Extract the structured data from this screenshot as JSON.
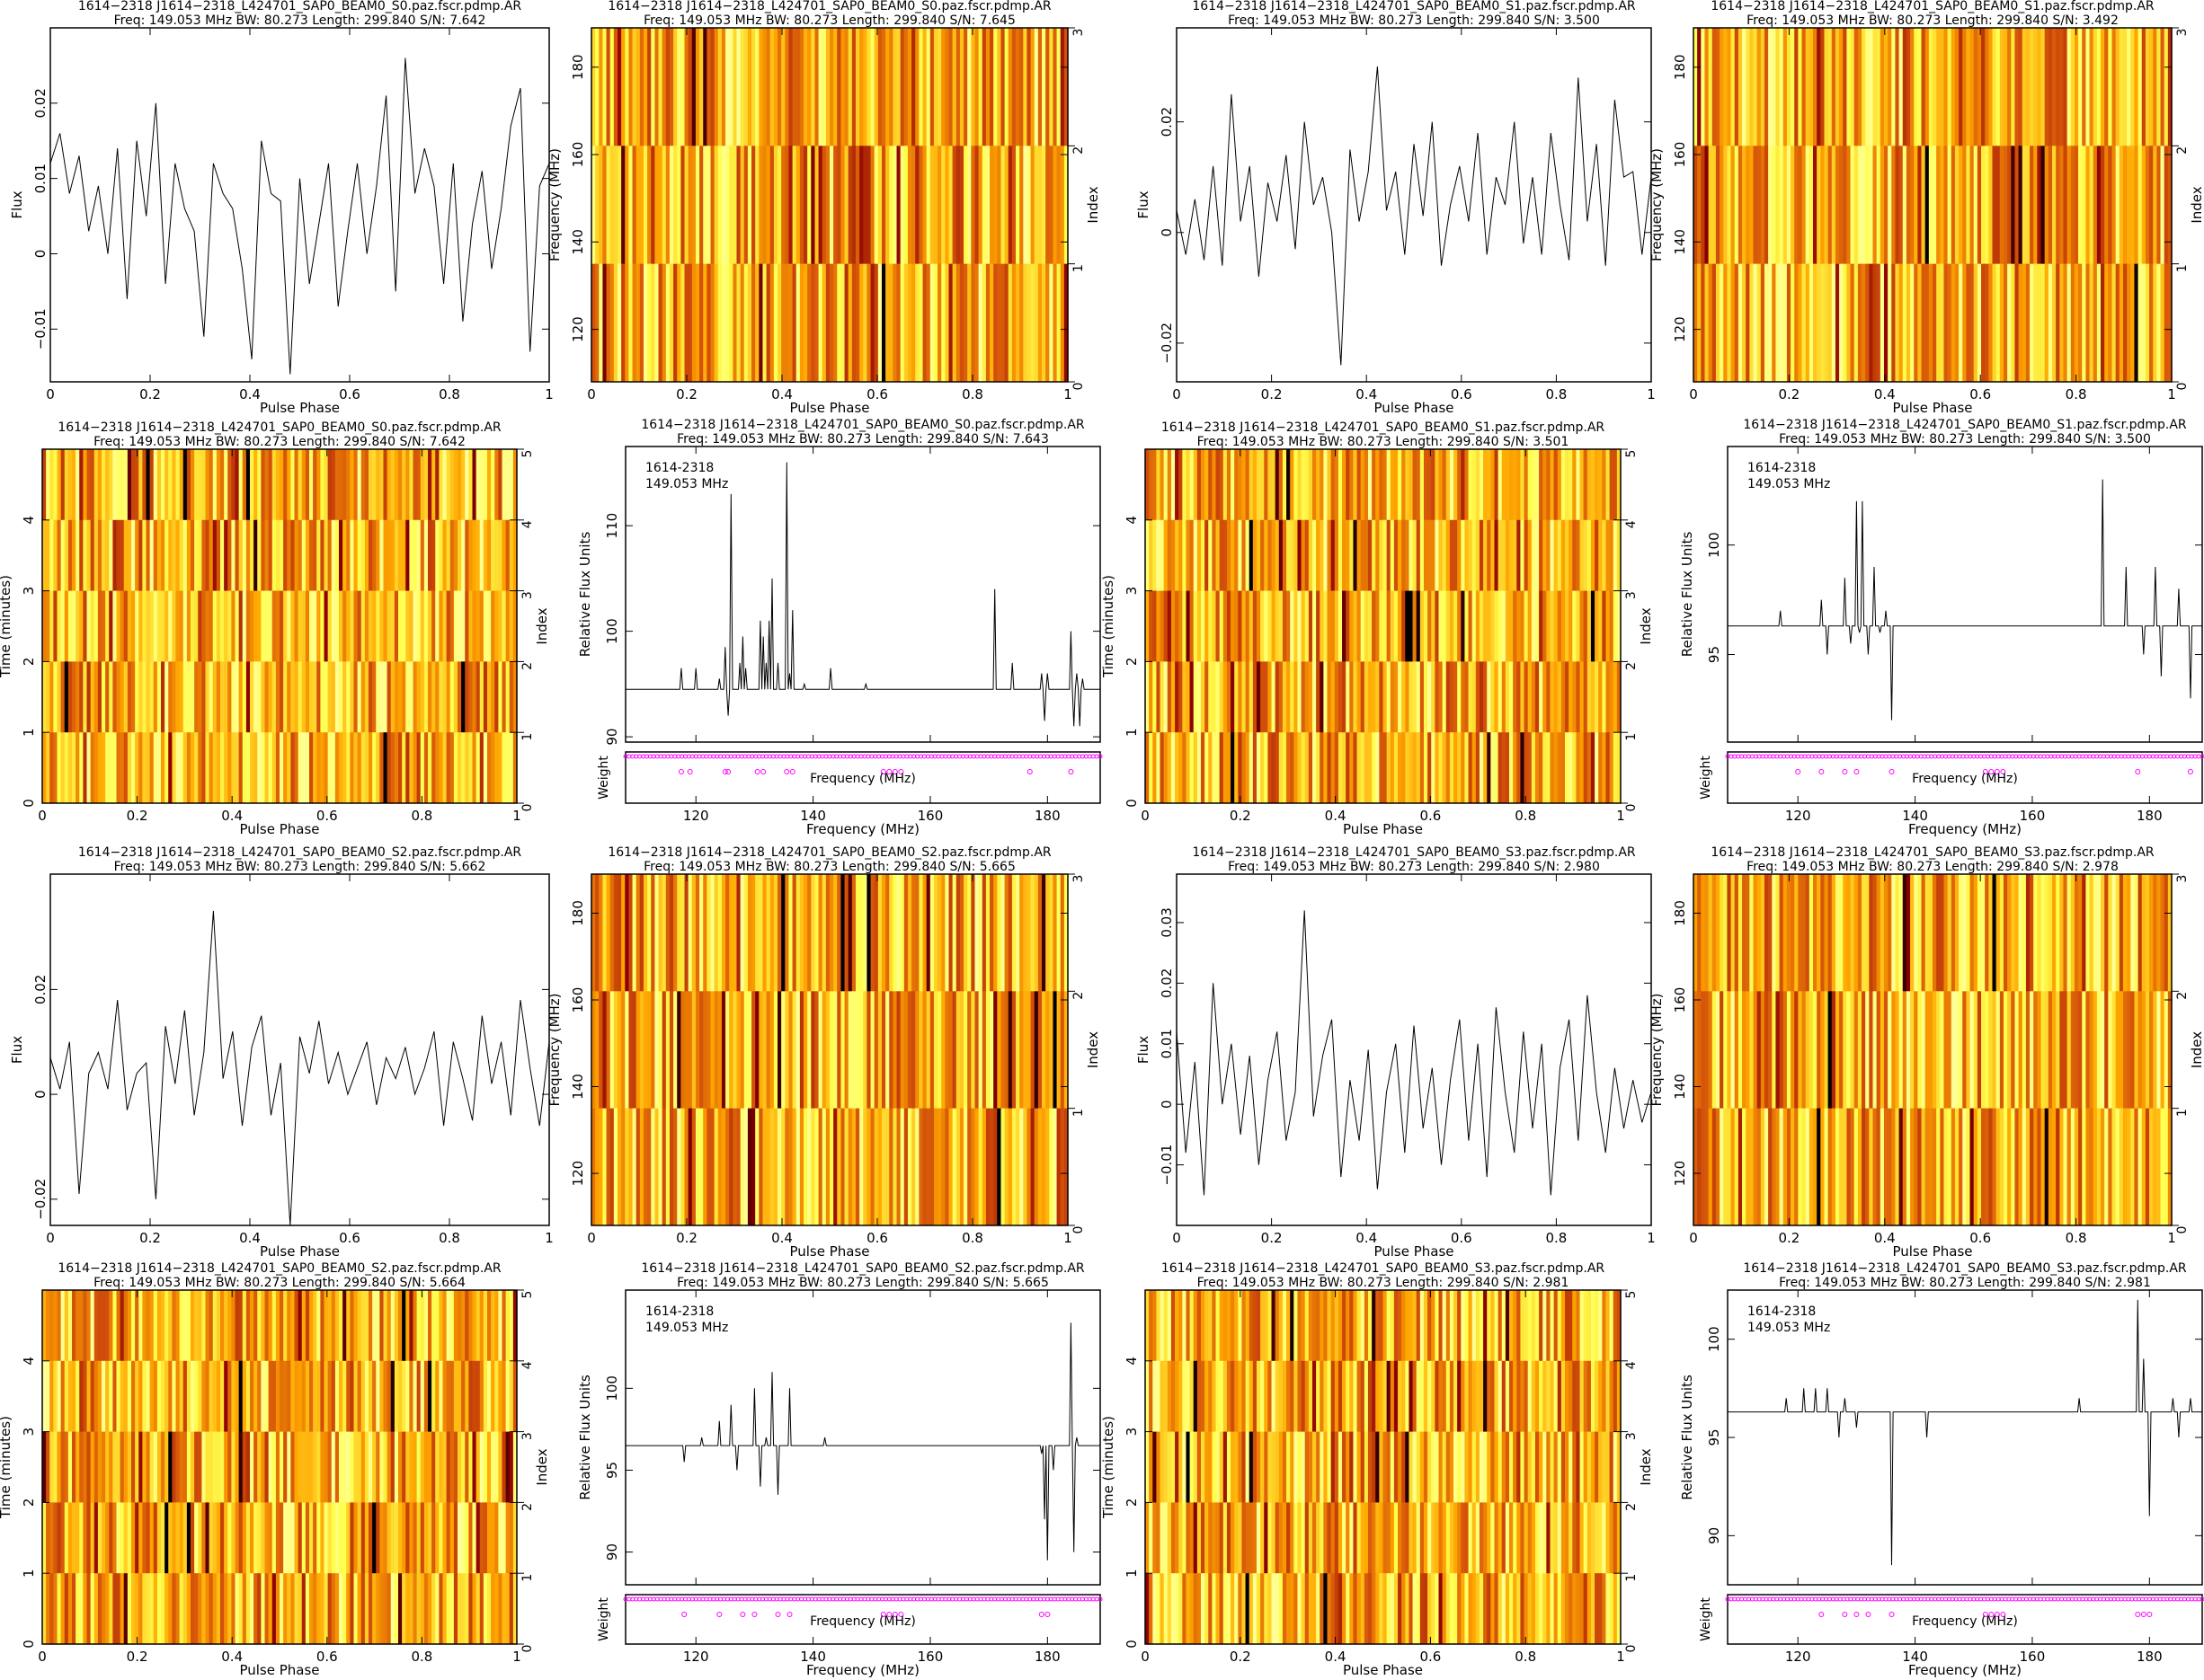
{
  "common": {
    "freq_label": "Frequency (MHz)",
    "phase_label": "Pulse Phase",
    "flux_label": "Flux",
    "time_label": "Time (minutes)",
    "index_label": "Index",
    "rel_flux_label": "Relative Flux Units",
    "weight_label": "Weight",
    "inset_source": "1614-2318",
    "inset_freq": "149.053 MHz"
  },
  "colors": {
    "line": "#000000",
    "weights": "#ff00ff",
    "cmap": [
      "#000000",
      "#8b0000",
      "#d2500a",
      "#ffa500",
      "#ffff50",
      "#ffffe0"
    ]
  },
  "chart_data": [
    {
      "type": "line",
      "kind": "profile",
      "title": "1614−2318 J1614−2318_L424701_SAP0_BEAM0_S0.paz.fscr.pdmp.AR",
      "subtitle": "Freq: 149.053 MHz BW: 80.273 Length: 299.840 S/N: 7.642",
      "xlabel": "Pulse Phase",
      "ylabel": "Flux",
      "xlim": [
        0,
        1
      ],
      "ylim": [
        -0.017,
        0.03
      ],
      "xticks": [
        "0",
        "0.2",
        "0.4",
        "0.6",
        "0.8",
        "1"
      ],
      "yticks": [
        -0.01,
        0,
        0.01,
        0.02
      ],
      "ytick_labels": [
        "−0.01",
        "0",
        "0.01",
        "0.02"
      ],
      "values": [
        0.012,
        0.016,
        0.008,
        0.013,
        0.003,
        0.009,
        0.0,
        0.014,
        -0.006,
        0.015,
        0.005,
        0.02,
        -0.004,
        0.012,
        0.006,
        0.003,
        -0.011,
        0.012,
        0.008,
        0.006,
        -0.002,
        -0.014,
        0.015,
        0.008,
        0.007,
        -0.016,
        0.01,
        -0.004,
        0.004,
        0.012,
        -0.007,
        0.003,
        0.012,
        0.0,
        0.009,
        0.021,
        -0.005,
        0.026,
        0.008,
        0.014,
        0.009,
        -0.004,
        0.012,
        -0.009,
        0.004,
        0.011,
        -0.002,
        0.006,
        0.017,
        0.022,
        -0.013,
        0.009,
        0.012
      ]
    },
    {
      "type": "heatmap",
      "kind": "freq-phase",
      "title": "1614−2318 J1614−2318_L424701_SAP0_BEAM0_S0.paz.fscr.pdmp.AR",
      "subtitle": "Freq: 149.053 MHz BW: 80.273 Length: 299.840 S/N: 7.645",
      "xlabel": "Pulse Phase",
      "ylabel": "Frequency (MHz)",
      "ylabel2": "Index",
      "xlim": [
        0,
        1
      ],
      "ylim": [
        108,
        189
      ],
      "rows": 3,
      "cols": 128,
      "seed": 11,
      "xticks": [
        "0",
        "0.2",
        "0.4",
        "0.6",
        "0.8",
        "1"
      ],
      "yticks": [
        120,
        140,
        160,
        180
      ],
      "yticks2": [
        0,
        1,
        2,
        3
      ]
    },
    {
      "type": "line",
      "kind": "profile",
      "title": "1614−2318 J1614−2318_L424701_SAP0_BEAM0_S1.paz.fscr.pdmp.AR",
      "subtitle": "Freq: 149.053 MHz BW: 80.273 Length: 299.840 S/N: 3.500",
      "xlabel": "Pulse Phase",
      "ylabel": "Flux",
      "xlim": [
        0,
        1
      ],
      "ylim": [
        -0.027,
        0.037
      ],
      "xticks": [
        "0",
        "0.2",
        "0.4",
        "0.6",
        "0.8",
        "1"
      ],
      "yticks": [
        -0.02,
        0,
        0.02
      ],
      "ytick_labels": [
        "−0.02",
        "0",
        "0.02"
      ],
      "values": [
        0.004,
        -0.004,
        0.006,
        -0.005,
        0.012,
        -0.006,
        0.025,
        0.002,
        0.012,
        -0.008,
        0.009,
        0.002,
        0.014,
        -0.003,
        0.02,
        0.005,
        0.01,
        0.0,
        -0.024,
        0.015,
        0.002,
        0.011,
        0.03,
        0.004,
        0.011,
        -0.004,
        0.016,
        0.003,
        0.02,
        -0.006,
        0.005,
        0.012,
        0.002,
        0.018,
        -0.004,
        0.01,
        0.005,
        0.02,
        -0.002,
        0.01,
        -0.004,
        0.018,
        0.005,
        -0.005,
        0.028,
        0.002,
        0.016,
        -0.006,
        0.024,
        0.01,
        0.011,
        -0.004,
        0.01
      ]
    },
    {
      "type": "heatmap",
      "kind": "freq-phase",
      "title": "1614−2318 J1614−2318_L424701_SAP0_BEAM0_S1.paz.fscr.pdmp.AR",
      "subtitle": "Freq: 149.053 MHz BW: 80.273 Length: 299.840 S/N: 3.492",
      "xlabel": "Pulse Phase",
      "ylabel": "Frequency (MHz)",
      "ylabel2": "Index",
      "xlim": [
        0,
        1
      ],
      "ylim": [
        108,
        189
      ],
      "rows": 3,
      "cols": 128,
      "seed": 23,
      "xticks": [
        "0",
        "0.2",
        "0.4",
        "0.6",
        "0.8",
        "1"
      ],
      "yticks": [
        120,
        140,
        160,
        180
      ],
      "yticks2": [
        0,
        1,
        2,
        3
      ]
    },
    {
      "type": "heatmap",
      "kind": "time-phase",
      "title": "1614−2318 J1614−2318_L424701_SAP0_BEAM0_S0.paz.fscr.pdmp.AR",
      "subtitle": "Freq: 149.053 MHz BW: 80.273 Length: 299.840 S/N: 7.642",
      "xlabel": "Pulse Phase",
      "ylabel": "Time (minutes)",
      "ylabel2": "Index",
      "xlim": [
        0,
        1
      ],
      "ylim": [
        0,
        5
      ],
      "rows": 5,
      "cols": 128,
      "seed": 37,
      "xticks": [
        "0",
        "0.2",
        "0.4",
        "0.6",
        "0.8",
        "1"
      ],
      "yticks": [
        0,
        1,
        2,
        3,
        4
      ],
      "yticks2": [
        0,
        1,
        2,
        3,
        4,
        5
      ]
    },
    {
      "type": "line",
      "kind": "spectrum",
      "title": "1614−2318 J1614−2318_L424701_SAP0_BEAM0_S0.paz.fscr.pdmp.AR",
      "subtitle": "Freq: 149.053 MHz BW: 80.273 Length: 299.840 S/N: 7.643",
      "xlabel": "Frequency (MHz)",
      "ylabel": "Relative Flux Units",
      "xlim": [
        108,
        189
      ],
      "ylim": [
        89.5,
        117.5
      ],
      "xticks": [
        120,
        140,
        160,
        180
      ],
      "yticks": [
        90,
        100,
        110
      ],
      "baseline": 94.5,
      "spikes": [
        [
          117.5,
          96.5
        ],
        [
          120,
          96.5
        ],
        [
          124,
          95.5
        ],
        [
          125,
          98.5
        ],
        [
          125.5,
          92
        ],
        [
          126,
          113
        ],
        [
          127.5,
          97
        ],
        [
          128,
          99.5
        ],
        [
          128.5,
          96.5
        ],
        [
          131,
          101
        ],
        [
          131.5,
          99.5
        ],
        [
          132,
          97
        ],
        [
          132.5,
          101
        ],
        [
          133,
          105
        ],
        [
          134,
          97
        ],
        [
          135.5,
          116
        ],
        [
          136,
          96
        ],
        [
          136.5,
          102
        ],
        [
          138.5,
          95
        ],
        [
          143,
          96.5
        ],
        [
          149,
          95
        ],
        [
          171,
          104
        ],
        [
          174,
          97
        ],
        [
          179,
          96
        ],
        [
          179.5,
          91.5
        ],
        [
          180,
          96
        ],
        [
          184,
          100
        ],
        [
          184.5,
          91
        ],
        [
          185,
          96
        ],
        [
          185.5,
          91
        ],
        [
          186,
          95.5
        ]
      ],
      "weight_dips": [
        117.5,
        119,
        125,
        125.5,
        130.5,
        131.5,
        135.5,
        136.5,
        152,
        153,
        154,
        155,
        177,
        184
      ]
    },
    {
      "type": "heatmap",
      "kind": "time-phase",
      "title": "1614−2318 J1614−2318_L424701_SAP0_BEAM0_S1.paz.fscr.pdmp.AR",
      "subtitle": "Freq: 149.053 MHz BW: 80.273 Length: 299.840 S/N: 3.501",
      "xlabel": "Pulse Phase",
      "ylabel": "Time (minutes)",
      "ylabel2": "Index",
      "xlim": [
        0,
        1
      ],
      "ylim": [
        0,
        5
      ],
      "rows": 5,
      "cols": 128,
      "seed": 41,
      "xticks": [
        "0",
        "0.2",
        "0.4",
        "0.6",
        "0.8",
        "1"
      ],
      "yticks": [
        0,
        1,
        2,
        3,
        4
      ],
      "yticks2": [
        0,
        1,
        2,
        3,
        4,
        5
      ]
    },
    {
      "type": "line",
      "kind": "spectrum",
      "title": "1614−2318 J1614−2318_L424701_SAP0_BEAM0_S1.paz.fscr.pdmp.AR",
      "subtitle": "Freq: 149.053 MHz BW: 80.273 Length: 299.840 S/N: 3.500",
      "xlabel": "Frequency (MHz)",
      "ylabel": "Relative Flux Units",
      "xlim": [
        108,
        189
      ],
      "ylim": [
        91,
        104.5
      ],
      "xticks": [
        120,
        140,
        160,
        180
      ],
      "yticks": [
        95,
        100
      ],
      "baseline": 96.3,
      "spikes": [
        [
          117,
          97
        ],
        [
          124,
          97.5
        ],
        [
          125,
          95
        ],
        [
          128,
          98.5
        ],
        [
          129,
          95.5
        ],
        [
          130,
          102
        ],
        [
          130.5,
          96
        ],
        [
          131,
          102
        ],
        [
          132,
          95
        ],
        [
          133,
          99
        ],
        [
          134,
          96
        ],
        [
          135,
          97
        ],
        [
          136,
          92
        ],
        [
          172,
          103
        ],
        [
          176,
          99
        ],
        [
          179,
          95
        ],
        [
          181,
          99
        ],
        [
          182,
          94
        ],
        [
          185,
          98
        ],
        [
          187,
          93
        ]
      ],
      "weight_dips": [
        120,
        124,
        128,
        130,
        136,
        152,
        153,
        154,
        155,
        178,
        187
      ]
    },
    {
      "type": "line",
      "kind": "profile",
      "title": "1614−2318 J1614−2318_L424701_SAP0_BEAM0_S2.paz.fscr.pdmp.AR",
      "subtitle": "Freq: 149.053 MHz BW: 80.273 Length: 299.840 S/N: 5.662",
      "xlabel": "Pulse Phase",
      "ylabel": "Flux",
      "xlim": [
        0,
        1
      ],
      "ylim": [
        -0.025,
        0.042
      ],
      "xticks": [
        "0",
        "0.2",
        "0.4",
        "0.6",
        "0.8",
        "1"
      ],
      "yticks": [
        -0.02,
        0,
        0.02
      ],
      "ytick_labels": [
        "−0.02",
        "0",
        "0.02"
      ],
      "values": [
        0.007,
        0.001,
        0.01,
        -0.019,
        0.004,
        0.008,
        0.001,
        0.018,
        -0.003,
        0.004,
        0.006,
        -0.02,
        0.013,
        0.002,
        0.016,
        -0.004,
        0.008,
        0.035,
        0.003,
        0.012,
        -0.006,
        0.009,
        0.015,
        -0.004,
        0.006,
        -0.025,
        0.011,
        0.004,
        0.014,
        0.002,
        0.008,
        0.0,
        0.005,
        0.01,
        -0.002,
        0.007,
        0.003,
        0.009,
        0.0,
        0.005,
        0.012,
        -0.006,
        0.01,
        0.003,
        -0.005,
        0.015,
        0.002,
        0.01,
        -0.004,
        0.018,
        0.005,
        -0.006,
        0.01
      ]
    },
    {
      "type": "heatmap",
      "kind": "freq-phase",
      "title": "1614−2318 J1614−2318_L424701_SAP0_BEAM0_S2.paz.fscr.pdmp.AR",
      "subtitle": "Freq: 149.053 MHz BW: 80.273 Length: 299.840 S/N: 5.665",
      "xlabel": "Pulse Phase",
      "ylabel": "Frequency (MHz)",
      "ylabel2": "Index",
      "xlim": [
        0,
        1
      ],
      "ylim": [
        108,
        189
      ],
      "rows": 3,
      "cols": 128,
      "seed": 53,
      "xticks": [
        "0",
        "0.2",
        "0.4",
        "0.6",
        "0.8",
        "1"
      ],
      "yticks": [
        120,
        140,
        160,
        180
      ],
      "yticks2": [
        0,
        1,
        2,
        3
      ]
    },
    {
      "type": "line",
      "kind": "profile",
      "title": "1614−2318 J1614−2318_L424701_SAP0_BEAM0_S3.paz.fscr.pdmp.AR",
      "subtitle": "Freq: 149.053 MHz BW: 80.273 Length: 299.840 S/N: 2.980",
      "xlabel": "Pulse Phase",
      "ylabel": "Flux",
      "xlim": [
        0,
        1
      ],
      "ylim": [
        -0.02,
        0.038
      ],
      "xticks": [
        "0",
        "0.2",
        "0.4",
        "0.6",
        "0.8",
        "1"
      ],
      "yticks": [
        -0.01,
        0,
        0.01,
        0.02,
        0.03
      ],
      "ytick_labels": [
        "−0.01",
        "0",
        "0.01",
        "0.02",
        "0.03"
      ],
      "values": [
        0.012,
        -0.008,
        0.007,
        -0.015,
        0.02,
        0.0,
        0.01,
        -0.005,
        0.008,
        -0.01,
        0.004,
        0.012,
        -0.006,
        0.002,
        0.032,
        -0.002,
        0.008,
        0.014,
        -0.012,
        0.004,
        -0.006,
        0.009,
        -0.014,
        0.002,
        0.01,
        -0.008,
        0.013,
        -0.004,
        0.006,
        -0.01,
        0.004,
        0.014,
        -0.006,
        0.01,
        -0.012,
        0.016,
        0.002,
        -0.008,
        0.012,
        -0.004,
        0.01,
        -0.015,
        0.006,
        0.014,
        -0.006,
        0.018,
        0.002,
        -0.008,
        0.006,
        -0.004,
        0.004,
        -0.003,
        0.002
      ]
    },
    {
      "type": "heatmap",
      "kind": "freq-phase",
      "title": "1614−2318 J1614−2318_L424701_SAP0_BEAM0_S3.paz.fscr.pdmp.AR",
      "subtitle": "Freq: 149.053 MHz BW: 80.273 Length: 299.840 S/N: 2.978",
      "xlabel": "Pulse Phase",
      "ylabel": "Frequency (MHz)",
      "ylabel2": "Index",
      "xlim": [
        0,
        1
      ],
      "ylim": [
        108,
        189
      ],
      "rows": 3,
      "cols": 128,
      "seed": 67,
      "xticks": [
        "0",
        "0.2",
        "0.4",
        "0.6",
        "0.8",
        "1"
      ],
      "yticks": [
        120,
        140,
        160,
        180
      ],
      "yticks2": [
        0,
        1,
        2,
        3
      ]
    },
    {
      "type": "heatmap",
      "kind": "time-phase",
      "title": "1614−2318 J1614−2318_L424701_SAP0_BEAM0_S2.paz.fscr.pdmp.AR",
      "subtitle": "Freq: 149.053 MHz BW: 80.273 Length: 299.840 S/N: 5.664",
      "xlabel": "Pulse Phase",
      "ylabel": "Time (minutes)",
      "ylabel2": "Index",
      "xlim": [
        0,
        1
      ],
      "ylim": [
        0,
        5
      ],
      "rows": 5,
      "cols": 128,
      "seed": 71,
      "xticks": [
        "0",
        "0.2",
        "0.4",
        "0.6",
        "0.8",
        "1"
      ],
      "yticks": [
        0,
        1,
        2,
        3,
        4
      ],
      "yticks2": [
        0,
        1,
        2,
        3,
        4,
        5
      ]
    },
    {
      "type": "line",
      "kind": "spectrum",
      "title": "1614−2318 J1614−2318_L424701_SAP0_BEAM0_S2.paz.fscr.pdmp.AR",
      "subtitle": "Freq: 149.053 MHz BW: 80.273 Length: 299.840 S/N: 5.665",
      "xlabel": "Frequency (MHz)",
      "ylabel": "Relative Flux Units",
      "xlim": [
        108,
        189
      ],
      "ylim": [
        88,
        106
      ],
      "xticks": [
        120,
        140,
        160,
        180
      ],
      "yticks": [
        90,
        95,
        100
      ],
      "baseline": 96.5,
      "spikes": [
        [
          118,
          95.5
        ],
        [
          121,
          97
        ],
        [
          124,
          98
        ],
        [
          126,
          99
        ],
        [
          127,
          95
        ],
        [
          130,
          100
        ],
        [
          131,
          94
        ],
        [
          132,
          97
        ],
        [
          133,
          101
        ],
        [
          134,
          93.5
        ],
        [
          136,
          100
        ],
        [
          142,
          97
        ],
        [
          179,
          96
        ],
        [
          179.5,
          92
        ],
        [
          180,
          89.5
        ],
        [
          181,
          95
        ],
        [
          184,
          104
        ],
        [
          184.5,
          90
        ],
        [
          185,
          97
        ]
      ],
      "weight_dips": [
        118,
        124,
        128,
        130,
        134,
        136,
        152,
        153,
        154,
        155,
        179,
        180
      ]
    },
    {
      "type": "heatmap",
      "kind": "time-phase",
      "title": "1614−2318 J1614−2318_L424701_SAP0_BEAM0_S3.paz.fscr.pdmp.AR",
      "subtitle": "Freq: 149.053 MHz BW: 80.273 Length: 299.840 S/N: 2.981",
      "xlabel": "Pulse Phase",
      "ylabel": "Time (minutes)",
      "ylabel2": "Index",
      "xlim": [
        0,
        1
      ],
      "ylim": [
        0,
        5
      ],
      "rows": 5,
      "cols": 128,
      "seed": 83,
      "xticks": [
        "0",
        "0.2",
        "0.4",
        "0.6",
        "0.8",
        "1"
      ],
      "yticks": [
        0,
        1,
        2,
        3,
        4
      ],
      "yticks2": [
        0,
        1,
        2,
        3,
        4,
        5
      ]
    },
    {
      "type": "line",
      "kind": "spectrum",
      "title": "1614−2318 J1614−2318_L424701_SAP0_BEAM0_S3.paz.fscr.pdmp.AR",
      "subtitle": "Freq: 149.053 MHz BW: 80.273 Length: 299.840 S/N: 2.981",
      "xlabel": "Frequency (MHz)",
      "ylabel": "Relative Flux Units",
      "xlim": [
        108,
        189
      ],
      "ylim": [
        87.5,
        102.5
      ],
      "xticks": [
        120,
        140,
        160,
        180
      ],
      "yticks": [
        90,
        95,
        100
      ],
      "baseline": 96.3,
      "spikes": [
        [
          118,
          97
        ],
        [
          121,
          97.5
        ],
        [
          123,
          97.5
        ],
        [
          125,
          97.5
        ],
        [
          127,
          95
        ],
        [
          128,
          97
        ],
        [
          130,
          95.5
        ],
        [
          136,
          88.5
        ],
        [
          142,
          95
        ],
        [
          168,
          97
        ],
        [
          178,
          102
        ],
        [
          179,
          99
        ],
        [
          180,
          91
        ],
        [
          184,
          97
        ],
        [
          185,
          95
        ],
        [
          187,
          97
        ]
      ],
      "weight_dips": [
        124,
        128,
        130,
        132,
        136,
        152,
        153,
        154,
        155,
        178,
        179,
        180
      ]
    }
  ]
}
